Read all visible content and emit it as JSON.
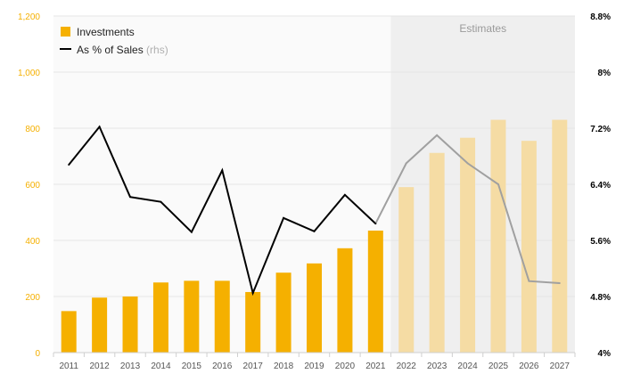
{
  "chart_data": {
    "type": "bar",
    "categories": [
      "2011",
      "2012",
      "2013",
      "2014",
      "2015",
      "2016",
      "2017",
      "2018",
      "2019",
      "2020",
      "2021",
      "2022",
      "2023",
      "2024",
      "2025",
      "2026",
      "2027"
    ],
    "series": [
      {
        "name": "Investments",
        "chart_type": "bar",
        "axis": "left",
        "color": "#f5b000",
        "estimate_color": "#f5dca4",
        "values": [
          148,
          196,
          200,
          250,
          256,
          256,
          216,
          285,
          318,
          372,
          435,
          590,
          712,
          766,
          830,
          755,
          830
        ]
      },
      {
        "name": "As % of Sales",
        "name_suffix": "(rhs)",
        "chart_type": "line",
        "axis": "right",
        "color": "#000000",
        "estimate_color": "#a0a0a0",
        "values": [
          6.68,
          7.22,
          6.22,
          6.15,
          5.72,
          6.6,
          4.85,
          5.92,
          5.73,
          6.25,
          5.84,
          6.7,
          7.1,
          6.7,
          6.4,
          5.02,
          4.99
        ]
      }
    ],
    "estimates": {
      "label": "Estimates",
      "from_category": "2022"
    },
    "y_left": {
      "min": 0,
      "max": 1200,
      "ticks": [
        "0",
        "200",
        "400",
        "600",
        "800",
        "1,000",
        "1,200"
      ],
      "tick_values": [
        0,
        200,
        400,
        600,
        800,
        1000,
        1200
      ],
      "color": "#f5b000"
    },
    "y_right": {
      "min": 4,
      "max": 8.8,
      "ticks": [
        "4%",
        "4.8%",
        "5.6%",
        "6.4%",
        "7.2%",
        "8%",
        "8.8%"
      ],
      "tick_values": [
        4,
        4.8,
        5.6,
        6.4,
        7.2,
        8,
        8.8
      ],
      "color": "#000000"
    },
    "grid": true,
    "legend_position": "top-left",
    "colors": {
      "plot_background": "#fafafa",
      "estimate_background": "#efefef",
      "grid": "#e6e6e6"
    }
  }
}
